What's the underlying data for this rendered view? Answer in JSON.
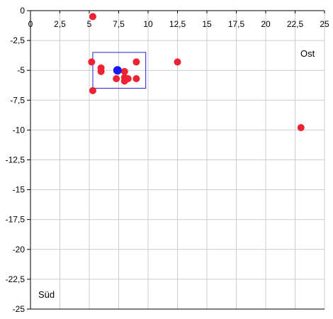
{
  "chart_data": {
    "type": "scatter",
    "xlim": [
      0,
      25
    ],
    "ylim": [
      -25,
      0
    ],
    "x_ticks": [
      "0",
      "2,5",
      "5",
      "7,5",
      "10",
      "12,5",
      "15",
      "17,5",
      "20",
      "22,5",
      "25"
    ],
    "y_ticks": [
      "0",
      "-2,5",
      "-5",
      "-7,5",
      "-10",
      "-12,5",
      "-15",
      "-17,5",
      "-20",
      "-22,5",
      "-25"
    ],
    "grid": true,
    "corner_labels": {
      "east": "Ost",
      "south": "Süd"
    },
    "colors": {
      "points": "#ee2233",
      "centroid": "#1a1aee",
      "box": "#2222cc",
      "grid": "#cccccc",
      "axis": "#000000"
    },
    "series": [
      {
        "values": [
          {
            "x": 5.3,
            "y": -0.5
          },
          {
            "x": 5.2,
            "y": -4.3
          },
          {
            "x": 6.0,
            "y": -4.8
          },
          {
            "x": 6.0,
            "y": -5.1
          },
          {
            "x": 7.3,
            "y": -5.7
          },
          {
            "x": 8.0,
            "y": -5.1
          },
          {
            "x": 8.0,
            "y": -5.6
          },
          {
            "x": 8.0,
            "y": -5.9
          },
          {
            "x": 8.3,
            "y": -5.7
          },
          {
            "x": 9.0,
            "y": -4.3
          },
          {
            "x": 9.0,
            "y": -5.7
          },
          {
            "x": 5.3,
            "y": -6.7
          },
          {
            "x": 12.5,
            "y": -4.3
          },
          {
            "x": 23.0,
            "y": -9.8
          }
        ]
      }
    ],
    "centroid": {
      "x": 7.4,
      "y": -5.0
    },
    "box": {
      "x0": 5.3,
      "x1": 9.8,
      "y0": -3.5,
      "y1": -6.5
    }
  }
}
